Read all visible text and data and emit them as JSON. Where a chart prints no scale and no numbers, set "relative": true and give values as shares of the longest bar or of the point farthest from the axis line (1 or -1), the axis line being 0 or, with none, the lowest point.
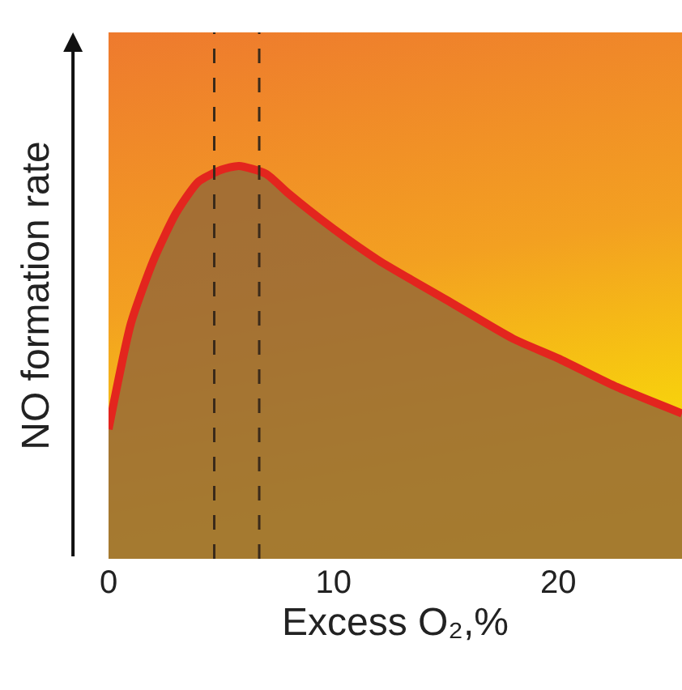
{
  "chart_data": {
    "type": "area",
    "relative": true,
    "xlabel": "Excess O₂,%",
    "ylabel": "NO formation rate",
    "xlim": [
      0,
      25.5
    ],
    "xticks": [
      0,
      10,
      20
    ],
    "grid": false,
    "series": [
      {
        "color": "#e3251e",
        "x": [
          0,
          1,
          2,
          3,
          4,
          5,
          5.8,
          7,
          8,
          10,
          12,
          15,
          18,
          20,
          22.5,
          25.5
        ],
        "values": [
          0.33,
          0.6,
          0.76,
          0.88,
          0.96,
          0.99,
          1,
          0.98,
          0.93,
          0.84,
          0.76,
          0.66,
          0.56,
          0.51,
          0.44,
          0.37
        ]
      }
    ],
    "ref_lines": [
      {
        "axis": "x",
        "value": 4.7,
        "color": "#3a2a1a",
        "line_style": "dashed"
      },
      {
        "axis": "x",
        "value": 6.7,
        "color": "#3a2a1a",
        "line_style": "dashed"
      }
    ]
  }
}
